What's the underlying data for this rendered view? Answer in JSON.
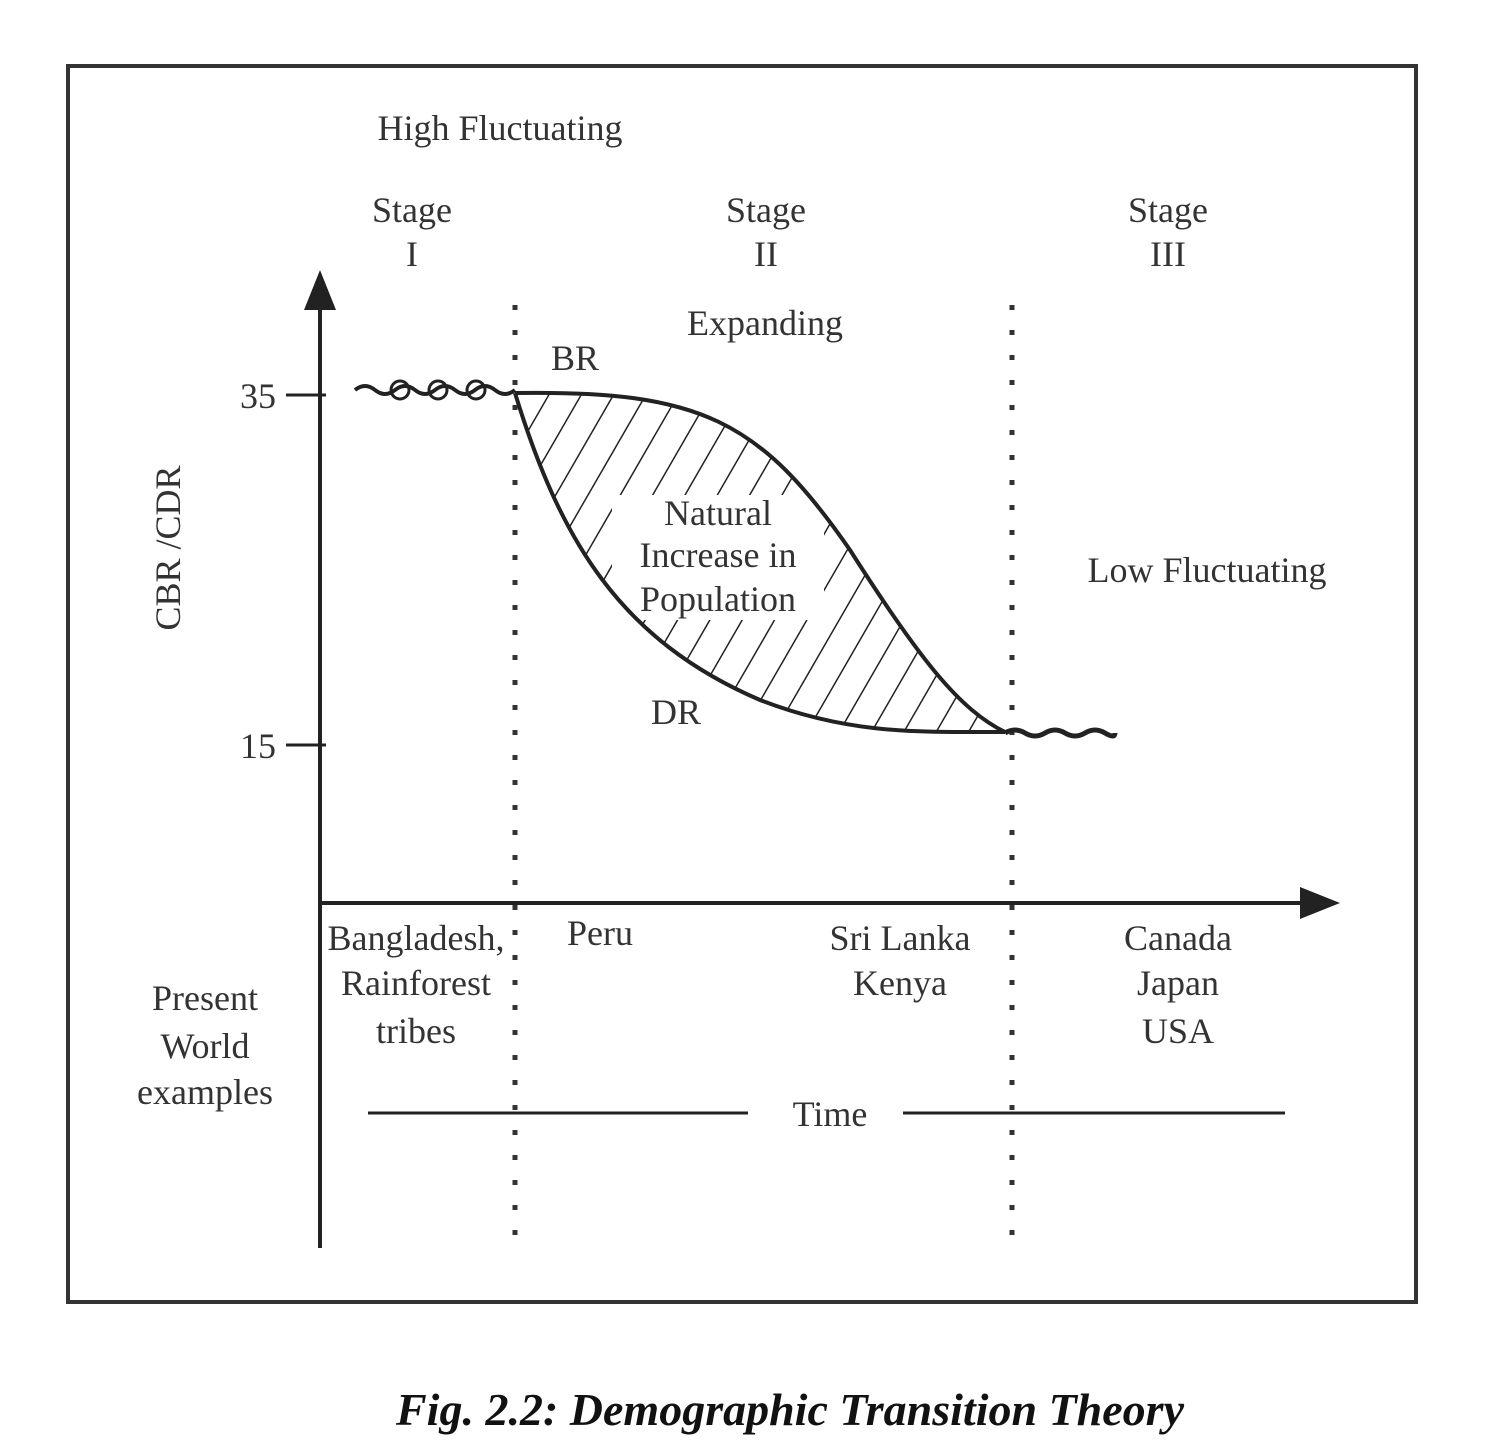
{
  "phases": {
    "high": "High Fluctuating",
    "expanding": "Expanding",
    "low": "Low Fluctuating"
  },
  "stages": [
    [
      "Stage",
      "I"
    ],
    [
      "Stage",
      "II"
    ],
    [
      "Stage",
      "III"
    ]
  ],
  "y_axis": {
    "label": "CBR /CDR",
    "ticks": [
      35,
      15
    ]
  },
  "x_axis": {
    "label": "Time"
  },
  "curves": {
    "birth_rate": "BR",
    "death_rate": "DR"
  },
  "area_label": [
    "Natural",
    "Increase in",
    "Population"
  ],
  "examples": {
    "label": [
      "Present",
      "World",
      "examples"
    ],
    "columns": [
      [
        "Bangladesh,",
        "Rainforest",
        "tribes"
      ],
      [
        "Peru"
      ],
      [
        "Sri Lanka",
        "Kenya"
      ],
      [
        "Canada",
        "Japan",
        "USA"
      ]
    ]
  },
  "caption": "Fig. 2.2: Demographic Transition Theory"
}
